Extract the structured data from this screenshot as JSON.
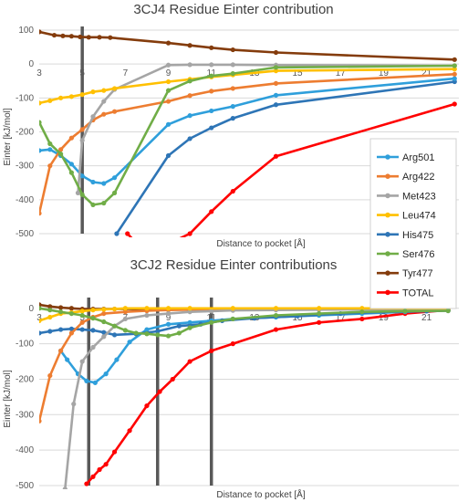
{
  "chart_data": [
    {
      "type": "line",
      "title": "3CJ4 Residue Einter contribution",
      "xlabel": "Distance to pocket [Å]",
      "ylabel": "Einter [kJ/mol]",
      "xlim": [
        3,
        22.5
      ],
      "ylim": [
        -500,
        100
      ],
      "xticks": [
        "3",
        "5",
        "7",
        "9",
        "11",
        "13",
        "15",
        "17",
        "19",
        "21"
      ],
      "yticks": [
        "100",
        "0",
        "-100",
        "-200",
        "-300",
        "-400",
        "-500"
      ],
      "grid": "horizontal",
      "vlines": [
        5
      ],
      "series": [
        {
          "name": "Tyr477",
          "color": "#843C0C",
          "x": [
            3,
            3.7,
            4.1,
            4.5,
            4.9,
            5.3,
            5.8,
            6.3,
            9,
            10,
            11,
            12,
            14,
            22.3
          ],
          "y": [
            95,
            85,
            83,
            82,
            80,
            79,
            79,
            78,
            62,
            55,
            48,
            42,
            34,
            13
          ]
        },
        {
          "name": "TOTAL",
          "color": "#FF0000",
          "x": [
            7.1,
            8,
            10,
            11,
            12,
            14,
            22.3
          ],
          "y": [
            -500,
            -560,
            -500,
            -435,
            -375,
            -272,
            -118
          ]
        },
        {
          "name": "His475",
          "color": "#2E75B6",
          "x": [
            6.6,
            9,
            10,
            11,
            12,
            14,
            22.3
          ],
          "y": [
            -500,
            -270,
            -220,
            -188,
            -160,
            -120,
            -52
          ]
        },
        {
          "name": "Arg501",
          "color": "#2F9FDB",
          "x": [
            3,
            3.5,
            4,
            4.5,
            5,
            5.5,
            6,
            6.5,
            9,
            10,
            11,
            12,
            14,
            22.3
          ],
          "y": [
            -255,
            -252,
            -270,
            -295,
            -330,
            -348,
            -352,
            -335,
            -178,
            -152,
            -138,
            -125,
            -92,
            -43
          ]
        },
        {
          "name": "Arg422",
          "color": "#ED7D31",
          "x": [
            3,
            3.5,
            4,
            4.5,
            5,
            5.5,
            6,
            6.5,
            9,
            10,
            11,
            12,
            14,
            22.3
          ],
          "y": [
            -440,
            -300,
            -252,
            -218,
            -193,
            -165,
            -148,
            -140,
            -110,
            -93,
            -80,
            -72,
            -57,
            -30
          ]
        },
        {
          "name": "Met423",
          "color": "#A5A5A5",
          "x": [
            4.8,
            5,
            5.5,
            6,
            6.5,
            9,
            10,
            11,
            12,
            14,
            22.3
          ],
          "y": [
            -380,
            -225,
            -155,
            -110,
            -75,
            -3,
            -2,
            -2,
            -2,
            -3,
            -5
          ]
        },
        {
          "name": "Leu474",
          "color": "#FFC000",
          "x": [
            3,
            3.5,
            4,
            4.5,
            5,
            5.5,
            6,
            6.5,
            9,
            10,
            11,
            12,
            14,
            22.3
          ],
          "y": [
            -115,
            -108,
            -100,
            -96,
            -90,
            -82,
            -78,
            -72,
            -52,
            -45,
            -38,
            -32,
            -20,
            -15
          ]
        },
        {
          "name": "Ser476",
          "color": "#70AD47",
          "x": [
            3,
            3.5,
            4,
            4.5,
            5,
            5.5,
            6,
            6.5,
            9,
            10,
            11,
            12,
            14,
            22.3
          ],
          "y": [
            -172,
            -235,
            -265,
            -320,
            -385,
            -415,
            -410,
            -380,
            -78,
            -50,
            -35,
            -28,
            -10,
            -5
          ]
        }
      ],
      "legend": {
        "placement": "right",
        "entries": [
          "Arg501",
          "Arg422",
          "Met423",
          "Leu474",
          "His475",
          "Ser476",
          "Tyr477",
          "TOTAL"
        ]
      }
    },
    {
      "type": "line",
      "title": "3CJ2 Residue Einter contributions",
      "xlabel": "Distance to pocket [Å]",
      "ylabel": "Einter [kJ/mol]",
      "xlim": [
        3,
        22.5
      ],
      "ylim": [
        -500,
        20
      ],
      "xticks": [
        "3",
        "5",
        "7",
        "9",
        "11",
        "13",
        "15",
        "17",
        "19",
        "21"
      ],
      "yticks": [
        "0",
        "-100",
        "-200",
        "-300",
        "-400",
        "-500"
      ],
      "grid": "horizontal",
      "vlines": [
        5.3,
        8.5,
        11
      ],
      "series": [
        {
          "name": "Tyr477",
          "color": "#843C0C",
          "x": [
            3,
            3.5,
            4,
            4.5,
            5,
            5.5,
            6,
            6.5,
            7,
            8,
            9,
            10,
            11,
            12,
            14,
            16,
            18,
            20,
            22
          ],
          "y": [
            10,
            5,
            2,
            0,
            -2,
            -2,
            -2,
            -2,
            -2,
            -3,
            -3,
            -3,
            -2,
            -2,
            -2,
            -2,
            -2,
            -2,
            -3
          ]
        },
        {
          "name": "TOTAL",
          "color": "#FF0000",
          "x": [
            5.2,
            5.5,
            5.8,
            6.1,
            6.5,
            7.2,
            8,
            8.6,
            9.2,
            10,
            11,
            12,
            14,
            16,
            18,
            20,
            22
          ],
          "y": [
            -495,
            -475,
            -455,
            -440,
            -405,
            -345,
            -275,
            -235,
            -200,
            -150,
            -120,
            -100,
            -60,
            -40,
            -30,
            -15,
            -5
          ]
        },
        {
          "name": "Arg501",
          "color": "#2F9FDB",
          "x": [
            4,
            4.3,
            4.8,
            5.2,
            5.6,
            6.1,
            6.6,
            7.2,
            8,
            9,
            10,
            11,
            12,
            14,
            16,
            18,
            20,
            22
          ],
          "y": [
            -120,
            -145,
            -185,
            -205,
            -210,
            -185,
            -145,
            -95,
            -60,
            -45,
            -40,
            -35,
            -30,
            -25,
            -20,
            -15,
            -10,
            -5
          ]
        },
        {
          "name": "His475",
          "color": "#2E75B6",
          "x": [
            3,
            3.5,
            4,
            4.5,
            5,
            5.5,
            6,
            6.5,
            7.5,
            8.5,
            9.5,
            10.5,
            11.5,
            13,
            15,
            17,
            19,
            21,
            22
          ],
          "y": [
            -70,
            -65,
            -60,
            -58,
            -60,
            -62,
            -68,
            -75,
            -72,
            -65,
            -50,
            -45,
            -35,
            -28,
            -22,
            -15,
            -10,
            -8,
            -7
          ]
        },
        {
          "name": "Arg422",
          "color": "#ED7D31",
          "x": [
            3,
            3.5,
            4,
            4.5,
            5,
            5.5,
            6,
            7,
            8,
            9,
            10,
            12,
            14,
            16,
            18,
            20,
            22
          ],
          "y": [
            -318,
            -190,
            -120,
            -70,
            -40,
            -25,
            -15,
            -10,
            -7,
            -5,
            -4,
            -3,
            -3,
            -3,
            -2,
            -2,
            -2
          ]
        },
        {
          "name": "Met423",
          "color": "#A5A5A5",
          "x": [
            4.2,
            4.6,
            5,
            5.5,
            6,
            6.5,
            7,
            8,
            9,
            10,
            11,
            12,
            14,
            16,
            18,
            20,
            22
          ],
          "y": [
            -510,
            -270,
            -150,
            -110,
            -80,
            -50,
            -30,
            -20,
            -15,
            -10,
            -8,
            -6,
            -5,
            -4,
            -3,
            -3,
            -3
          ]
        },
        {
          "name": "Leu474",
          "color": "#FFC000",
          "x": [
            3,
            3.5,
            4,
            4.5,
            5,
            5.5,
            6,
            6.5,
            7,
            8,
            9,
            10,
            12,
            14,
            16,
            18,
            20,
            22
          ],
          "y": [
            -35,
            -25,
            -15,
            -12,
            -8,
            -5,
            -3,
            -2,
            0,
            0,
            0,
            0,
            0,
            0,
            0,
            0,
            0,
            0
          ]
        },
        {
          "name": "Ser476",
          "color": "#70AD47",
          "x": [
            3,
            3.5,
            4,
            4.5,
            5,
            5.5,
            6,
            6.5,
            7,
            7.5,
            8,
            8.5,
            9,
            9.5,
            10,
            11,
            12,
            14,
            16,
            18,
            20,
            22
          ],
          "y": [
            0,
            -5,
            -10,
            -15,
            -20,
            -28,
            -38,
            -50,
            -62,
            -70,
            -72,
            -75,
            -78,
            -70,
            -55,
            -40,
            -30,
            -20,
            -15,
            -10,
            -8,
            -7
          ]
        }
      ]
    }
  ]
}
